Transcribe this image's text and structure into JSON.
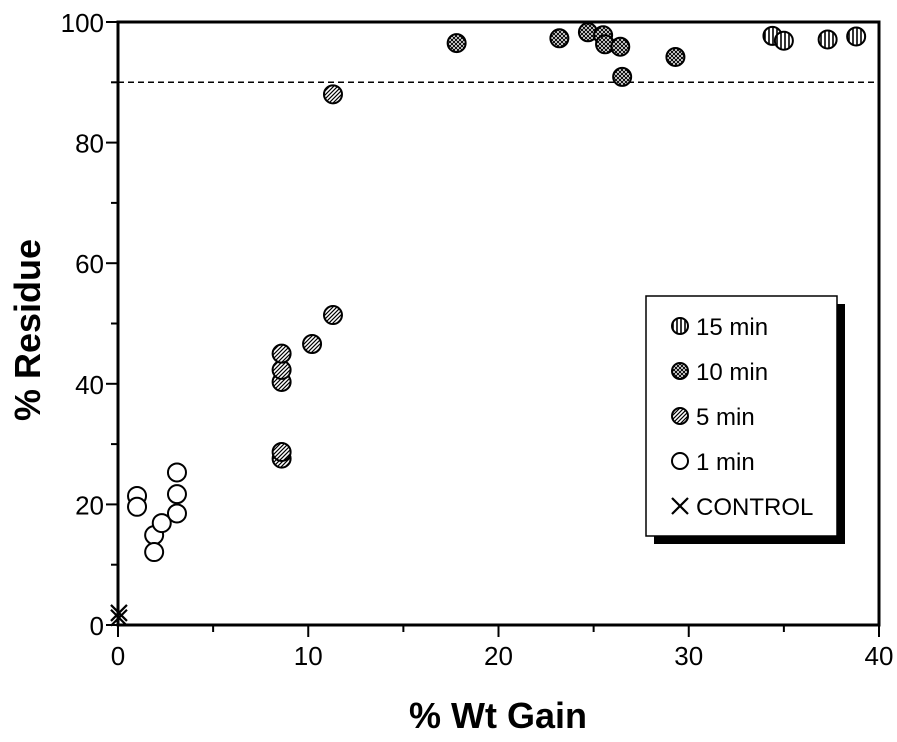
{
  "chart_data": {
    "type": "scatter",
    "xlabel": "% Wt Gain",
    "ylabel": "% Residue",
    "xlim": [
      0,
      40
    ],
    "ylim": [
      0,
      100
    ],
    "xticks": [
      0,
      10,
      20,
      30,
      40
    ],
    "yticks": [
      0,
      20,
      40,
      60,
      80,
      100
    ],
    "reference_line": {
      "y": 90,
      "style": "dashed"
    },
    "legend_position": "right",
    "series": [
      {
        "name": "15 min",
        "marker": "circle-vertical-hatch",
        "points": [
          {
            "x": 34.4,
            "y": 97.7
          },
          {
            "x": 35.0,
            "y": 96.9
          },
          {
            "x": 37.3,
            "y": 97.1
          },
          {
            "x": 38.8,
            "y": 97.6
          }
        ]
      },
      {
        "name": "10 min",
        "marker": "circle-crosshatch",
        "points": [
          {
            "x": 17.8,
            "y": 96.5
          },
          {
            "x": 23.2,
            "y": 97.3
          },
          {
            "x": 24.7,
            "y": 98.3
          },
          {
            "x": 25.5,
            "y": 97.8
          },
          {
            "x": 25.6,
            "y": 96.3
          },
          {
            "x": 26.4,
            "y": 95.9
          },
          {
            "x": 26.5,
            "y": 90.9
          },
          {
            "x": 29.3,
            "y": 94.2
          }
        ]
      },
      {
        "name": "5 min",
        "marker": "circle-diagonal-hatch",
        "points": [
          {
            "x": 8.6,
            "y": 27.6
          },
          {
            "x": 8.6,
            "y": 28.7
          },
          {
            "x": 8.6,
            "y": 40.3
          },
          {
            "x": 8.6,
            "y": 42.3
          },
          {
            "x": 8.6,
            "y": 45.0
          },
          {
            "x": 10.2,
            "y": 46.6
          },
          {
            "x": 11.3,
            "y": 51.4
          },
          {
            "x": 11.3,
            "y": 88.0
          }
        ]
      },
      {
        "name": "1 min",
        "marker": "circle-open",
        "points": [
          {
            "x": 1.0,
            "y": 21.4
          },
          {
            "x": 1.0,
            "y": 19.6
          },
          {
            "x": 1.9,
            "y": 14.9
          },
          {
            "x": 1.9,
            "y": 12.1
          },
          {
            "x": 2.3,
            "y": 16.9
          },
          {
            "x": 3.1,
            "y": 25.3
          },
          {
            "x": 3.1,
            "y": 21.7
          },
          {
            "x": 3.1,
            "y": 18.5
          }
        ]
      },
      {
        "name": "CONTROL",
        "marker": "x",
        "points": [
          {
            "x": 0.05,
            "y": 2.0
          },
          {
            "x": 0.05,
            "y": 1.2
          }
        ]
      }
    ]
  }
}
